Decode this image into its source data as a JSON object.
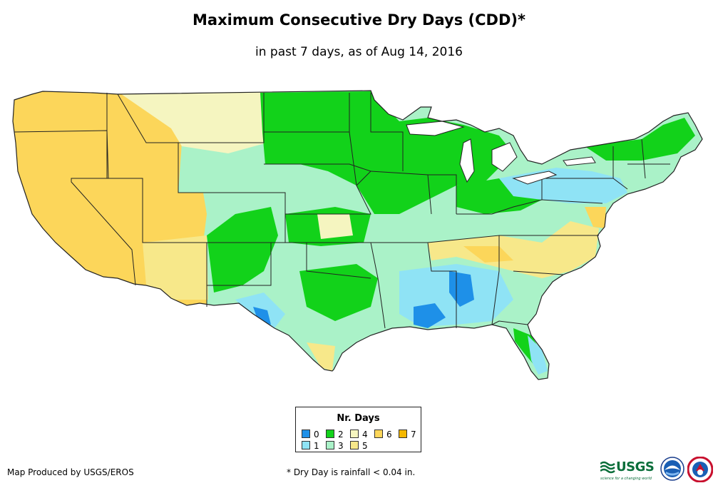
{
  "title": "Maximum Consecutive Dry Days (CDD)*",
  "subtitle": "in past 7 days, as of Aug 14, 2016",
  "legend": {
    "title": "Nr. Days",
    "items": [
      {
        "label": "0",
        "color": "#1e90e8"
      },
      {
        "label": "1",
        "color": "#8fe3f5"
      },
      {
        "label": "2",
        "color": "#12d21a"
      },
      {
        "label": "3",
        "color": "#aaf2c8"
      },
      {
        "label": "4",
        "color": "#f5f5c0"
      },
      {
        "label": "5",
        "color": "#f7e88a"
      },
      {
        "label": "6",
        "color": "#fcd65a"
      },
      {
        "label": "7",
        "color": "#f5b800"
      }
    ]
  },
  "credit": "Map Produced by USGS/EROS",
  "footnote": "* Dry Day is rainfall < 0.04 in.",
  "logos": {
    "usgs": "USGS",
    "usgs_tagline": "science for a changing world"
  }
}
